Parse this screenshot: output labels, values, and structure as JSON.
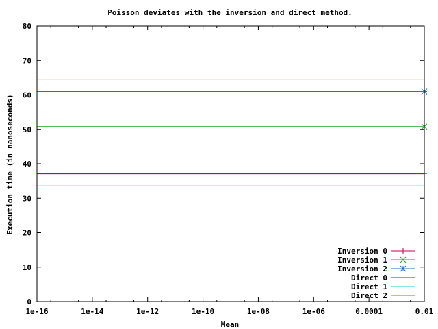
{
  "chart_data": {
    "type": "line",
    "title": "Poisson deviates with the inversion and direct method.",
    "xlabel": "Mean",
    "ylabel": "Execution time (in nanoseconds)",
    "x_scale": "log",
    "xlim": [
      1e-16,
      0.01
    ],
    "ylim": [
      0,
      80
    ],
    "x_ticks": [
      {
        "value": 1e-16,
        "label": "1e-16"
      },
      {
        "value": 1e-14,
        "label": "1e-14"
      },
      {
        "value": 1e-12,
        "label": "1e-12"
      },
      {
        "value": 1e-10,
        "label": "1e-10"
      },
      {
        "value": 1e-08,
        "label": "1e-08"
      },
      {
        "value": 1e-06,
        "label": "1e-06"
      },
      {
        "value": 0.0001,
        "label": "0.0001"
      },
      {
        "value": 0.01,
        "label": "0.01"
      }
    ],
    "y_ticks": [
      0,
      10,
      20,
      30,
      40,
      50,
      60,
      70,
      80
    ],
    "grid": false,
    "legend_position": "bottom-right",
    "series": [
      {
        "name": "Inversion 0",
        "color": "#c8004a",
        "marker": "plus",
        "points": [
          [
            1e-16,
            37.2
          ],
          [
            0.01,
            37.2
          ]
        ]
      },
      {
        "name": "Inversion 1",
        "color": "#22a322",
        "marker": "x",
        "points": [
          [
            1e-16,
            50.8
          ],
          [
            0.01,
            50.8
          ]
        ]
      },
      {
        "name": "Inversion 2",
        "color": "#1e6fc8",
        "marker": "star",
        "points": [
          [
            1e-16,
            61.0
          ],
          [
            0.01,
            61.0
          ]
        ]
      },
      {
        "name": "Direct 0",
        "color": "#b0008a",
        "marker": "none",
        "points": [
          [
            1e-16,
            37.1
          ],
          [
            0.01,
            37.1
          ]
        ]
      },
      {
        "name": "Direct 1",
        "color": "#22cccc",
        "marker": "none",
        "points": [
          [
            1e-16,
            33.6
          ],
          [
            0.01,
            33.6
          ]
        ]
      },
      {
        "name": "Direct 2",
        "color": "#b86a1a",
        "marker": "none",
        "points": [
          [
            1e-16,
            64.4
          ],
          [
            0.01,
            64.4
          ]
        ]
      }
    ]
  }
}
